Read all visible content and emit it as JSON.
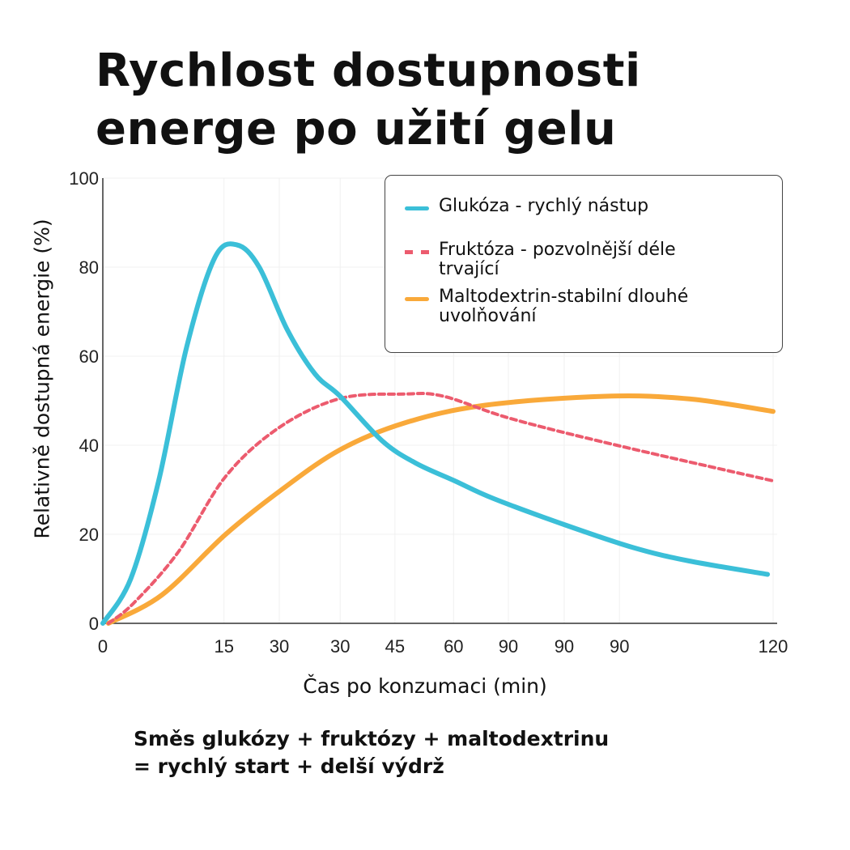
{
  "title_line1": "Rychlost dostupnosti",
  "title_line2": "energe po užití gelu",
  "footer_line1": "Směs glukózy + fruktózy + maltodextrinu",
  "footer_line2": "= rychlý start + delší výdrž",
  "chart_data": {
    "type": "line",
    "title": "Rychlost dostupnosti energe po užití gelu",
    "xlabel": "Čas po konzumaci (min)",
    "ylabel": "Relativně dostupná energie (%)",
    "xlim": [
      0,
      120
    ],
    "ylim": [
      0,
      100
    ],
    "yticks": [
      0,
      20,
      40,
      60,
      80,
      100
    ],
    "xticks": [
      {
        "at": 0,
        "label": "0"
      },
      {
        "at": 21.7,
        "label": "15"
      },
      {
        "at": 31.6,
        "label": "30"
      },
      {
        "at": 42.5,
        "label": "30"
      },
      {
        "at": 52.3,
        "label": "45"
      },
      {
        "at": 62.8,
        "label": "60"
      },
      {
        "at": 72.6,
        "label": "90"
      },
      {
        "at": 82.6,
        "label": "90"
      },
      {
        "at": 92.5,
        "label": "90"
      },
      {
        "at": 120,
        "label": "120"
      }
    ],
    "grid": true,
    "legend_position": "top-right",
    "series": [
      {
        "name": "Glukóza - rychlý nástup",
        "color": "#3bbfd8",
        "style": "solid",
        "x": [
          0,
          5,
          10,
          15,
          20,
          24,
          28,
          33,
          38,
          42.5,
          50,
          56,
          63,
          70,
          83,
          95,
          105,
          119
        ],
        "y": [
          0,
          10,
          32,
          62,
          82,
          85,
          80,
          66,
          56,
          51,
          41,
          36,
          32,
          28,
          22,
          17,
          14,
          11
        ]
      },
      {
        "name": "Fruktóza - pozvolnější déle trvající",
        "color": "#ec5b6e",
        "style": "dashed",
        "x": [
          1,
          5.5,
          13.5,
          22,
          31.6,
          42.5,
          54,
          61,
          73,
          92,
          120
        ],
        "y": [
          0,
          4.5,
          16,
          33,
          44,
          50.5,
          51.5,
          51,
          46,
          40,
          32
        ]
      },
      {
        "name": "Maltodextrin-stabilní dlouhé uvolňování",
        "color": "#f9a93a",
        "style": "solid",
        "x": [
          1,
          10.6,
          22,
          32,
          42.5,
          54,
          68.5,
          90,
          105,
          120
        ],
        "y": [
          0,
          6.4,
          20,
          30,
          39,
          45,
          49,
          51,
          50.4,
          47.6
        ]
      }
    ]
  }
}
